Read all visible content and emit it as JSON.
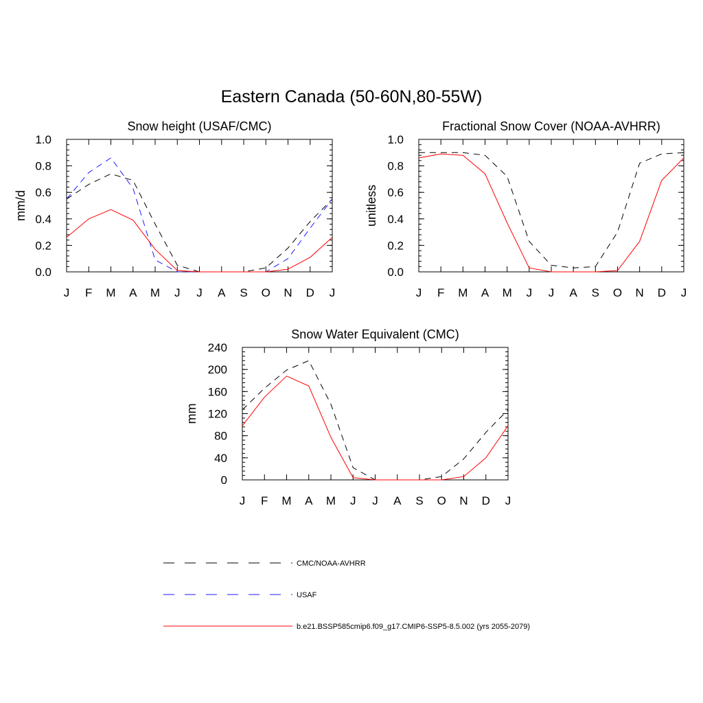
{
  "figure": {
    "title": "Eastern Canada (50-60N,80-55W)"
  },
  "colors": {
    "observed": "#000000",
    "usaf": "#1a1aff",
    "model": "#ff0000"
  },
  "chart_data": [
    {
      "type": "line",
      "title": "Snow height (USAF/CMC)",
      "ylabel": "mm/d",
      "xlabel": "",
      "categories": [
        "J",
        "F",
        "M",
        "A",
        "M",
        "J",
        "J",
        "A",
        "S",
        "O",
        "N",
        "D",
        "J"
      ],
      "ylim": [
        0,
        1.0
      ],
      "yticks": [
        "0.0",
        "0.2",
        "0.4",
        "0.6",
        "0.8",
        "1.0"
      ],
      "ytick_values": [
        0,
        0.2,
        0.4,
        0.6,
        0.8,
        1.0
      ],
      "yminor_step": 0.04,
      "series": [
        {
          "name": "CMC/NOAA-AVHRR",
          "style": "dashed",
          "color_key": "observed",
          "values": [
            0.55,
            0.66,
            0.74,
            0.69,
            0.36,
            0.05,
            0.0,
            0.0,
            0.0,
            0.03,
            0.18,
            0.38,
            0.55
          ]
        },
        {
          "name": "USAF",
          "style": "dashed",
          "color_key": "usaf",
          "values": [
            0.55,
            0.75,
            0.86,
            0.63,
            0.09,
            0.0,
            0.0,
            0.0,
            0.0,
            0.0,
            0.1,
            0.33,
            0.55
          ]
        },
        {
          "name": "b.e21.BSSP585cmip6.f09_g17.CMIP6-SSP5-8.5.002 (yrs 2055-2079)",
          "style": "solid",
          "color_key": "model",
          "values": [
            0.26,
            0.4,
            0.47,
            0.39,
            0.17,
            0.01,
            0.0,
            0.0,
            0.0,
            0.0,
            0.02,
            0.11,
            0.26
          ]
        }
      ]
    },
    {
      "type": "line",
      "title": "Fractional Snow Cover (NOAA-AVHRR)",
      "ylabel": "unitless",
      "xlabel": "",
      "categories": [
        "J",
        "F",
        "M",
        "A",
        "M",
        "J",
        "J",
        "A",
        "S",
        "O",
        "N",
        "D",
        "J"
      ],
      "ylim": [
        0,
        1.0
      ],
      "yticks": [
        "0.0",
        "0.2",
        "0.4",
        "0.6",
        "0.8",
        "1.0"
      ],
      "ytick_values": [
        0,
        0.2,
        0.4,
        0.6,
        0.8,
        1.0
      ],
      "yminor_step": 0.04,
      "series": [
        {
          "name": "CMC/NOAA-AVHRR",
          "style": "dashed",
          "color_key": "observed",
          "values": [
            0.9,
            0.9,
            0.9,
            0.88,
            0.72,
            0.23,
            0.05,
            0.03,
            0.04,
            0.3,
            0.82,
            0.89,
            0.9
          ]
        },
        {
          "name": "b.e21.BSSP585cmip6.f09_g17.CMIP6-SSP5-8.5.002 (yrs 2055-2079)",
          "style": "solid",
          "color_key": "model",
          "values": [
            0.86,
            0.89,
            0.88,
            0.74,
            0.37,
            0.03,
            0.0,
            0.0,
            0.0,
            0.01,
            0.23,
            0.69,
            0.86
          ]
        }
      ]
    },
    {
      "type": "line",
      "title": "Snow Water Equivalent (CMC)",
      "ylabel": "mm",
      "xlabel": "",
      "categories": [
        "J",
        "F",
        "M",
        "A",
        "M",
        "J",
        "J",
        "A",
        "S",
        "O",
        "N",
        "D",
        "J"
      ],
      "ylim": [
        0,
        240
      ],
      "yticks": [
        "0",
        "40",
        "80",
        "120",
        "160",
        "200",
        "240"
      ],
      "ytick_values": [
        0,
        40,
        80,
        120,
        160,
        200,
        240
      ],
      "yminor_step": 8,
      "series": [
        {
          "name": "CMC/NOAA-AVHRR",
          "style": "dashed",
          "color_key": "observed",
          "values": [
            127,
            166,
            199,
            216,
            137,
            22,
            0,
            0,
            0,
            6,
            38,
            86,
            127
          ]
        },
        {
          "name": "b.e21.BSSP585cmip6.f09_g17.CMIP6-SSP5-8.5.002 (yrs 2055-2079)",
          "style": "solid",
          "color_key": "model",
          "values": [
            98,
            150,
            188,
            170,
            77,
            4,
            0,
            0,
            0,
            0,
            6,
            40,
            98
          ]
        }
      ]
    }
  ],
  "legend": {
    "placement": "bottom-left",
    "items": [
      {
        "label": "CMC/NOAA-AVHRR",
        "style": "dashed",
        "color_key": "observed"
      },
      {
        "label": "USAF",
        "style": "dashed",
        "color_key": "usaf"
      },
      {
        "label": "b.e21.BSSP585cmip6.f09_g17.CMIP6-SSP5-8.5.002 (yrs 2055-2079)",
        "style": "solid",
        "color_key": "model"
      }
    ]
  }
}
